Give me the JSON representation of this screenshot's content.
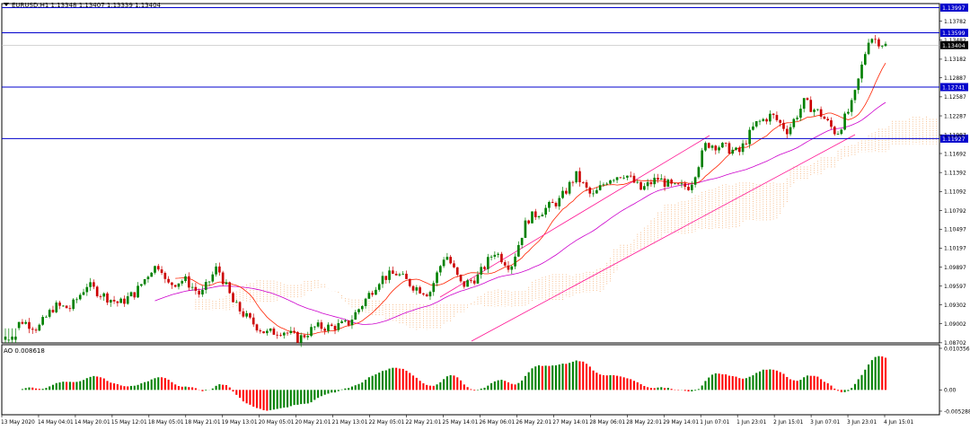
{
  "header": {
    "symbol": "EURUSD,H1",
    "ohlc": "1.13348 1.13407 1.13339 1.13404"
  },
  "indicator": {
    "name": "AO",
    "value": "0.008618",
    "ticks": [
      "0.010356",
      "0.00",
      "-0.005288"
    ]
  },
  "colors": {
    "hline": "#0000cc",
    "label_bg": "#0000cc",
    "price_bg": "#000000",
    "bull": "#008000",
    "bear": "#cc0000",
    "ma_fast": "#ff2200",
    "ma_slow": "#cc00cc",
    "channel": "#ff1493",
    "cloud": "#f4a460",
    "ao_up": "#008000",
    "ao_down": "#ff0000"
  },
  "chart_data": {
    "type": "candlestick",
    "ylim": [
      1.087,
      1.1406
    ],
    "yticks": [
      "1.14082",
      "1.13782",
      "1.13482",
      "1.13182",
      "1.12887",
      "1.12587",
      "1.12287",
      "1.11987",
      "1.11692",
      "1.11392",
      "1.11092",
      "1.10792",
      "1.10497",
      "1.10197",
      "1.09897",
      "1.09597",
      "1.09302",
      "1.09002",
      "1.08702"
    ],
    "xticks": [
      "13 May 2020",
      "14 May 04:01",
      "14 May 20:01",
      "15 May 12:01",
      "18 May 05:01",
      "18 May 21:01",
      "19 May 13:01",
      "20 May 05:01",
      "20 May 21:01",
      "21 May 13:01",
      "22 May 05:01",
      "22 May 21:01",
      "25 May 14:01",
      "26 May 06:01",
      "26 May 22:01",
      "27 May 14:01",
      "28 May 06:01",
      "28 May 22:01",
      "29 May 14:01",
      "1 Jun 07:01",
      "1 Jun 23:01",
      "2 Jun 15:01",
      "3 Jun 07:01",
      "3 Jun 23:01",
      "4 Jun 15:01"
    ],
    "horizontal_levels": [
      "1.13997",
      "1.13599",
      "1.12741",
      "1.11927"
    ],
    "current_price": "1.13404",
    "path": [
      1.0878,
      1.0905,
      1.0893,
      1.0928,
      1.0925,
      1.0962,
      1.0945,
      1.0932,
      1.095,
      1.0988,
      1.0962,
      1.097,
      1.0945,
      1.099,
      1.0932,
      1.0905,
      1.0885,
      1.089,
      1.0876,
      1.0895,
      1.0895,
      1.09,
      1.0935,
      1.0972,
      1.098,
      1.096,
      1.0948,
      1.1012,
      1.096,
      1.0975,
      1.1015,
      1.099,
      1.1065,
      1.108,
      1.1095,
      1.1135,
      1.11,
      1.113,
      1.1138,
      1.1112,
      1.113,
      1.1115,
      1.1118,
      1.1185,
      1.118,
      1.117,
      1.1215,
      1.123,
      1.1205,
      1.125,
      1.1232,
      1.12,
      1.125,
      1.1355,
      1.134
    ]
  }
}
